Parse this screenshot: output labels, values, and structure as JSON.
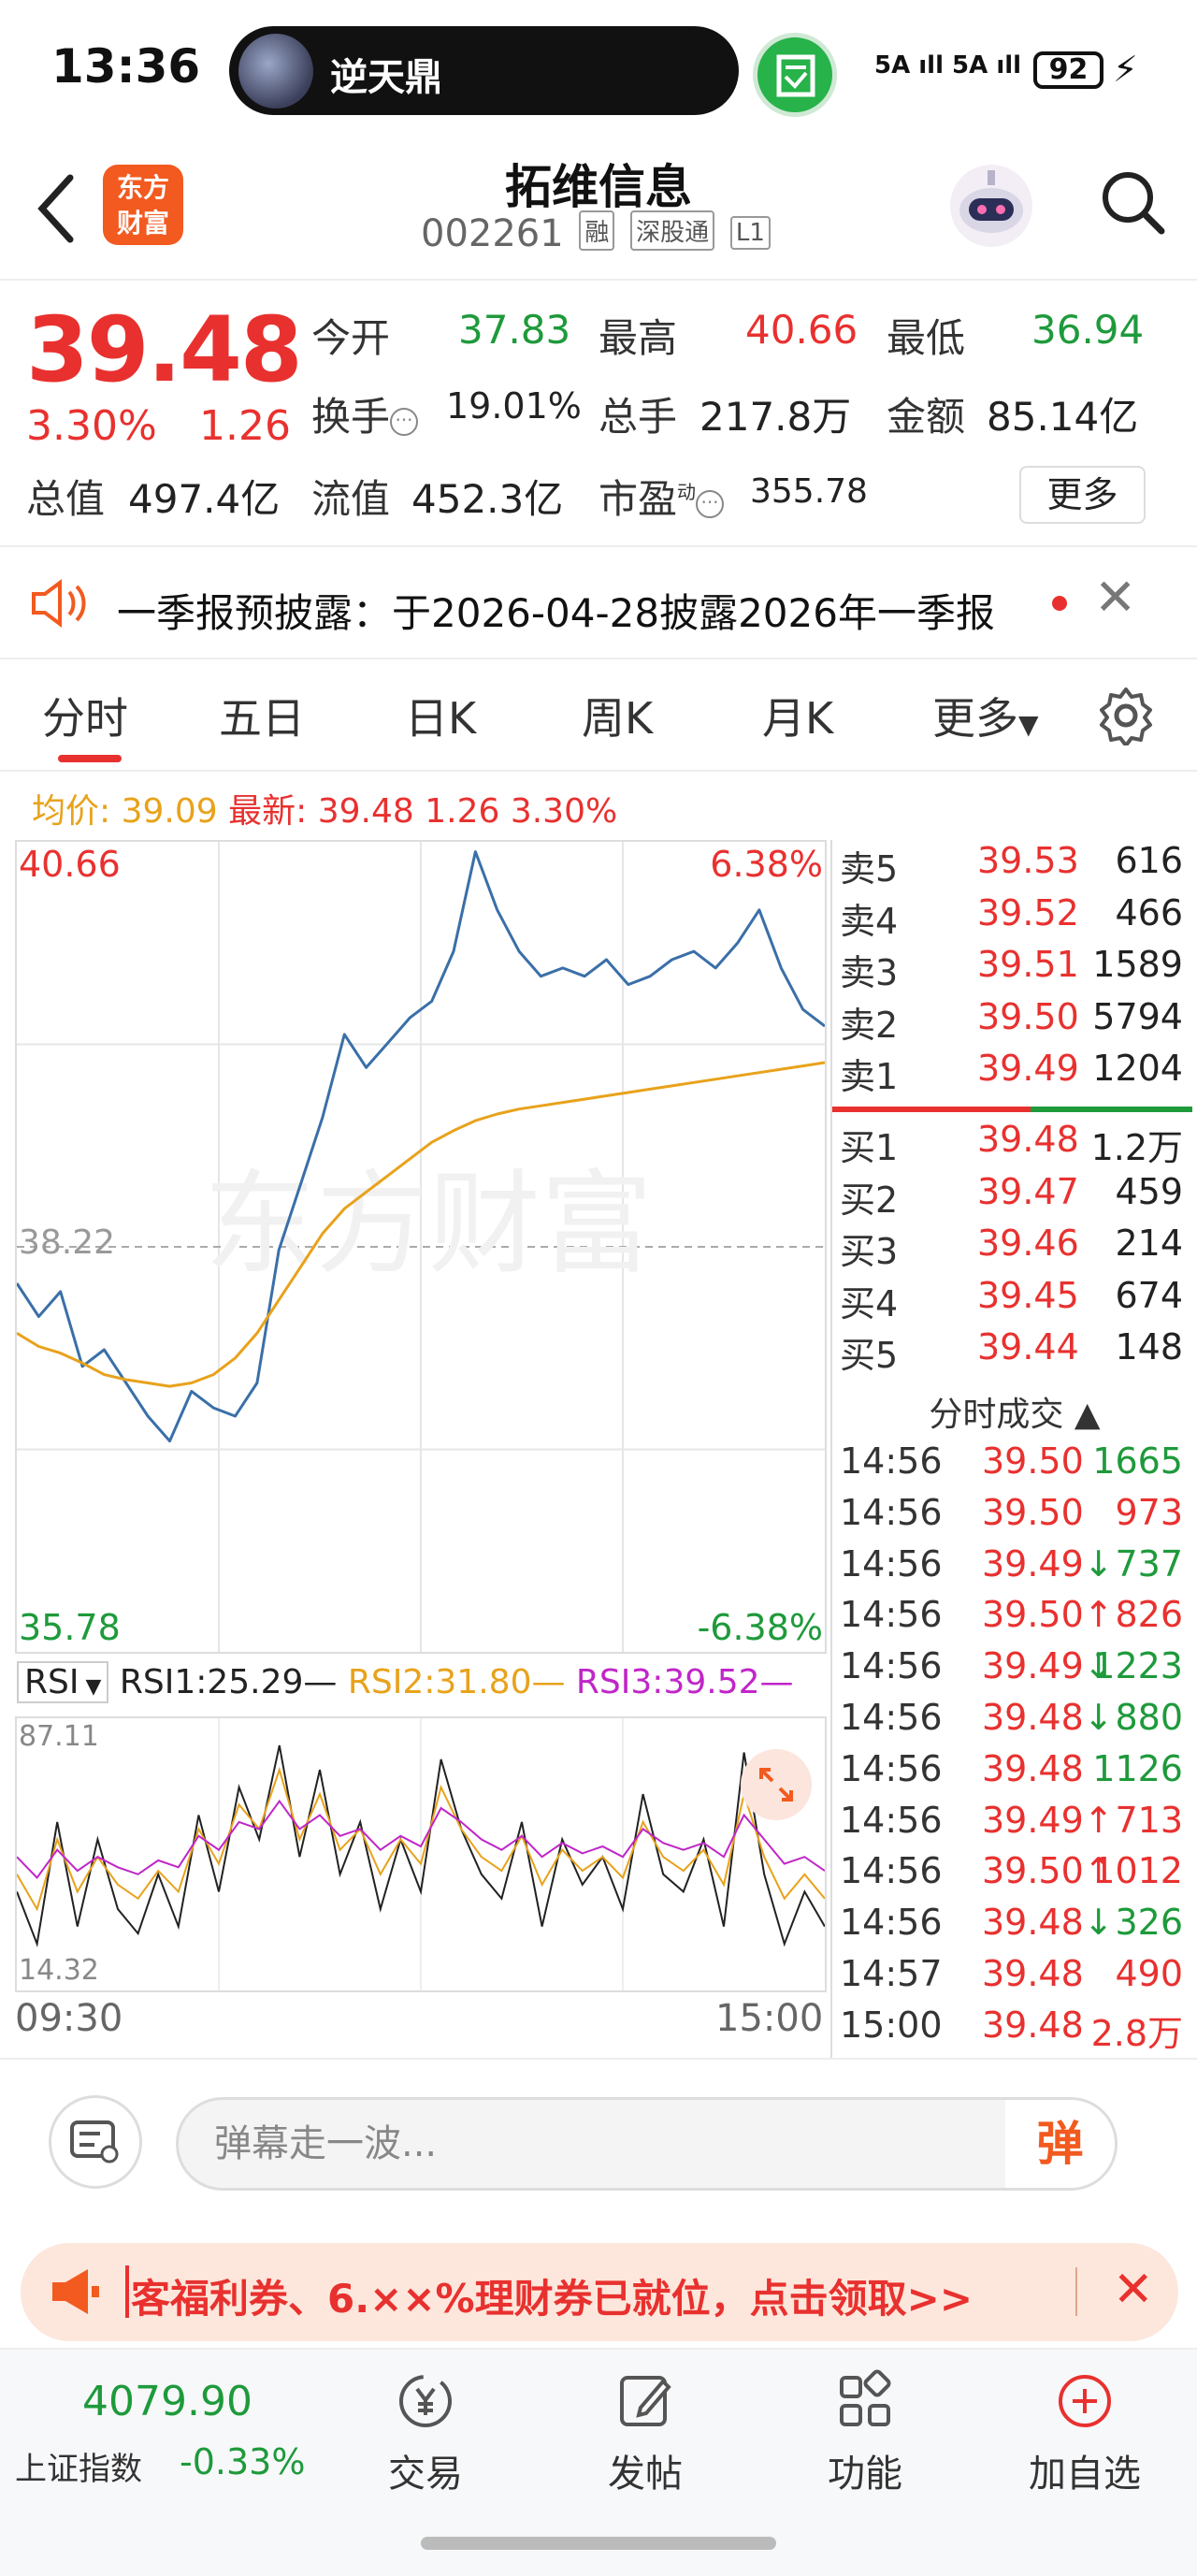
{
  "status_bar": {
    "time": "13:36",
    "media_title": "逆天鼎",
    "signal": "5A ıll 5A ıll",
    "battery": "92"
  },
  "header": {
    "name": "拓维信息",
    "code": "002261",
    "tags": [
      "融",
      "深股通",
      "L1"
    ],
    "logo_line1": "东方",
    "logo_line2": "财富"
  },
  "quote": {
    "price": "39.48",
    "pct": "3.30%",
    "change": "1.26",
    "open_label": "今开",
    "open": "37.83",
    "high_label": "最高",
    "high": "40.66",
    "low_label": "最低",
    "low": "36.94",
    "turnover_label": "换手",
    "turnover": "19.01%",
    "volume_label": "总手",
    "volume": "217.8万",
    "amount_label": "金额",
    "amount": "85.14亿",
    "mktcap_label": "总值",
    "mktcap": "497.4亿",
    "float_label": "流值",
    "float": "452.3亿",
    "pe_label": "市盈",
    "pe_sup": "动",
    "pe": "355.78",
    "more_label": "更多"
  },
  "notice": {
    "text": "一季报预披露：于2026-04-28披露2026年一季报"
  },
  "tabs": [
    "分时",
    "五日",
    "日K",
    "周K",
    "月K",
    "更多"
  ],
  "summary": {
    "avg_label": "均价:",
    "avg": "39.09",
    "latest_label": "最新:",
    "latest": "39.48",
    "change": "1.26",
    "pct": "3.30%"
  },
  "chart_data": {
    "type": "line",
    "title": "",
    "y_top_label": "40.66",
    "y_mid_label": "38.22",
    "y_bottom_label": "35.78",
    "pct_top_label": "6.38%",
    "pct_bottom_label": "-6.38%",
    "x_start_label": "09:30",
    "x_end_label": "15:00",
    "ylim": [
      35.78,
      40.66
    ],
    "prev_close": 38.22,
    "series": [
      {
        "name": "",
        "color": "#3a6fa8",
        "values": [
          38.0,
          37.8,
          37.95,
          37.5,
          37.6,
          37.4,
          37.2,
          37.05,
          37.35,
          37.25,
          37.2,
          37.4,
          38.2,
          38.6,
          39.0,
          39.5,
          39.3,
          39.45,
          39.6,
          39.7,
          40.0,
          40.6,
          40.25,
          40.0,
          39.85,
          39.9,
          39.85,
          39.95,
          39.8,
          39.85,
          39.95,
          40.0,
          39.9,
          40.05,
          40.25,
          39.9,
          39.65,
          39.55
        ]
      },
      {
        "name": "",
        "color": "#e8a21b",
        "values": [
          37.7,
          37.62,
          37.58,
          37.52,
          37.45,
          37.42,
          37.4,
          37.38,
          37.4,
          37.45,
          37.55,
          37.7,
          37.9,
          38.1,
          38.3,
          38.45,
          38.55,
          38.65,
          38.75,
          38.85,
          38.92,
          38.98,
          39.02,
          39.05,
          39.07,
          39.09,
          39.11,
          39.13,
          39.15,
          39.17,
          39.19,
          39.21,
          39.23,
          39.25,
          39.27,
          39.29,
          39.31,
          39.33
        ]
      }
    ]
  },
  "rsi": {
    "selector": "RSI",
    "rsi1": "RSI1:25.29—",
    "rsi2": "RSI2:31.80—",
    "rsi3": "RSI3:39.52—",
    "top_label": "87.11",
    "bottom_label": "14.32",
    "rsi1_values": [
      40,
      25,
      60,
      30,
      55,
      35,
      28,
      45,
      30,
      62,
      40,
      70,
      55,
      82,
      50,
      75,
      45,
      60,
      35,
      55,
      40,
      78,
      58,
      45,
      38,
      60,
      30,
      55,
      42,
      50,
      35,
      68,
      45,
      40,
      55,
      30,
      80,
      45,
      25,
      40,
      30
    ],
    "rsi2_values": [
      45,
      35,
      55,
      40,
      50,
      42,
      38,
      46,
      40,
      58,
      48,
      65,
      58,
      75,
      55,
      68,
      52,
      58,
      45,
      55,
      48,
      70,
      58,
      50,
      46,
      56,
      42,
      52,
      46,
      50,
      44,
      60,
      50,
      46,
      52,
      42,
      68,
      50,
      38,
      45,
      38
    ],
    "rsi3_values": [
      50,
      44,
      52,
      46,
      50,
      47,
      45,
      49,
      47,
      56,
      52,
      60,
      58,
      66,
      58,
      62,
      56,
      58,
      52,
      56,
      53,
      64,
      60,
      55,
      52,
      56,
      50,
      54,
      51,
      53,
      50,
      58,
      54,
      52,
      54,
      50,
      62,
      55,
      48,
      50,
      46
    ]
  },
  "orderbook": {
    "asks": [
      {
        "label": "卖5",
        "price": "39.53",
        "vol": "616"
      },
      {
        "label": "卖4",
        "price": "39.52",
        "vol": "466"
      },
      {
        "label": "卖3",
        "price": "39.51",
        "vol": "1589"
      },
      {
        "label": "卖2",
        "price": "39.50",
        "vol": "5794"
      },
      {
        "label": "卖1",
        "price": "39.49",
        "vol": "1204"
      }
    ],
    "bids": [
      {
        "label": "买1",
        "price": "39.48",
        "vol": "1.2万"
      },
      {
        "label": "买2",
        "price": "39.47",
        "vol": "459"
      },
      {
        "label": "买3",
        "price": "39.46",
        "vol": "214"
      },
      {
        "label": "买4",
        "price": "39.45",
        "vol": "674"
      },
      {
        "label": "买5",
        "price": "39.44",
        "vol": "148"
      }
    ],
    "trades_title": "分时成交 ▲",
    "trades": [
      {
        "time": "14:56",
        "price": "39.50",
        "arrow": "",
        "vol": "1665",
        "color": "green"
      },
      {
        "time": "14:56",
        "price": "39.50",
        "arrow": "",
        "vol": "973",
        "color": "red"
      },
      {
        "time": "14:56",
        "price": "39.49",
        "arrow": "↓",
        "vol": "737",
        "color": "green"
      },
      {
        "time": "14:56",
        "price": "39.50",
        "arrow": "↑",
        "vol": "826",
        "color": "red"
      },
      {
        "time": "14:56",
        "price": "39.49",
        "arrow": "↓",
        "vol": "1223",
        "color": "green"
      },
      {
        "time": "14:56",
        "price": "39.48",
        "arrow": "↓",
        "vol": "880",
        "color": "green"
      },
      {
        "time": "14:56",
        "price": "39.48",
        "arrow": "",
        "vol": "1126",
        "color": "green"
      },
      {
        "time": "14:56",
        "price": "39.49",
        "arrow": "↑",
        "vol": "713",
        "color": "red"
      },
      {
        "time": "14:56",
        "price": "39.50",
        "arrow": "↑",
        "vol": "1012",
        "color": "red"
      },
      {
        "time": "14:56",
        "price": "39.48",
        "arrow": "↓",
        "vol": "326",
        "color": "green"
      },
      {
        "time": "14:57",
        "price": "39.48",
        "arrow": "",
        "vol": "490",
        "color": "red"
      },
      {
        "time": "15:00",
        "price": "39.48",
        "arrow": "",
        "vol": "2.8万",
        "color": "red"
      }
    ]
  },
  "danmu": {
    "placeholder": "弹幕走一波...",
    "send_label": "弹"
  },
  "promo": {
    "text": "客福利券、6.××%理财券已就位，点击领取>>"
  },
  "bottom_nav": {
    "index_value": "4079.90",
    "index_name": "上证指数",
    "index_pct": "-0.33%",
    "items": [
      "交易",
      "发帖",
      "功能",
      "加自选"
    ]
  },
  "colors": {
    "up": "#e8312f",
    "down": "#1e9a3b",
    "price_line": "#3a6fa8",
    "avg_line": "#e8a21b",
    "rsi3": "#c026c8",
    "brand": "#f25a1f"
  }
}
